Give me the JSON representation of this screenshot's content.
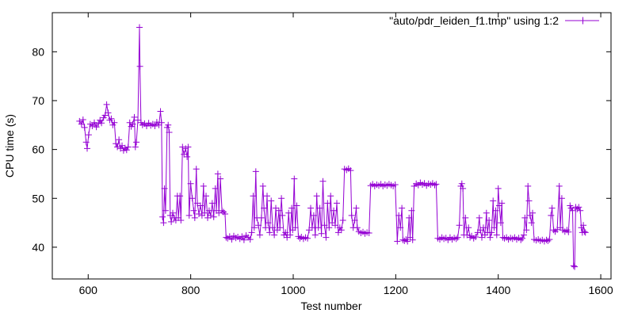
{
  "chart_data": {
    "type": "line",
    "title": "",
    "xlabel": "Test number",
    "ylabel": "CPU time (s)",
    "xlim": [
      530,
      1620
    ],
    "ylim": [
      33.5,
      88
    ],
    "xticks": [
      600,
      800,
      1000,
      1200,
      1400,
      1600
    ],
    "yticks": [
      40,
      50,
      60,
      70,
      80
    ],
    "grid": false,
    "legend_position": "top-right",
    "marker": "plus",
    "color": "#9400d3",
    "series": [
      {
        "name": "\"auto/pdr_leiden_f1.tmp\" using 1:2",
        "points": [
          [
            583,
            65.8
          ],
          [
            587,
            65.2
          ],
          [
            590,
            66.1
          ],
          [
            593,
            64.5
          ],
          [
            596,
            61.5
          ],
          [
            598,
            60.2
          ],
          [
            601,
            63.0
          ],
          [
            604,
            65.2
          ],
          [
            608,
            64.8
          ],
          [
            612,
            65.5
          ],
          [
            616,
            64.6
          ],
          [
            620,
            65.3
          ],
          [
            623,
            66.0
          ],
          [
            626,
            65.4
          ],
          [
            630,
            66.5
          ],
          [
            633,
            67.0
          ],
          [
            636,
            69.2
          ],
          [
            639,
            67.5
          ],
          [
            642,
            66.0
          ],
          [
            645,
            66.3
          ],
          [
            648,
            65.0
          ],
          [
            651,
            65.5
          ],
          [
            654,
            61.2
          ],
          [
            657,
            60.5
          ],
          [
            660,
            62.0
          ],
          [
            663,
            60.2
          ],
          [
            666,
            60.8
          ],
          [
            669,
            59.8
          ],
          [
            672,
            60.3
          ],
          [
            675,
            59.9
          ],
          [
            678,
            60.5
          ],
          [
            681,
            65.5
          ],
          [
            684,
            64.7
          ],
          [
            687,
            65.2
          ],
          [
            690,
            66.6
          ],
          [
            692,
            60.5
          ],
          [
            694,
            61.5
          ],
          [
            697,
            66.0
          ],
          [
            700,
            85.0
          ],
          [
            701,
            77.0
          ],
          [
            703,
            65.5
          ],
          [
            706,
            65.0
          ],
          [
            710,
            65.3
          ],
          [
            714,
            64.8
          ],
          [
            718,
            65.4
          ],
          [
            722,
            64.9
          ],
          [
            726,
            65.2
          ],
          [
            730,
            64.8
          ],
          [
            734,
            65.6
          ],
          [
            738,
            65.0
          ],
          [
            741,
            67.8
          ],
          [
            743,
            65.5
          ],
          [
            745,
            46.2
          ],
          [
            747,
            45.0
          ],
          [
            749,
            52.0
          ],
          [
            751,
            47.5
          ],
          [
            754,
            64.5
          ],
          [
            756,
            65.0
          ],
          [
            758,
            63.5
          ],
          [
            760,
            46.5
          ],
          [
            762,
            45.2
          ],
          [
            765,
            47.0
          ],
          [
            768,
            46.0
          ],
          [
            771,
            45.5
          ],
          [
            774,
            50.5
          ],
          [
            776,
            46.0
          ],
          [
            779,
            50.5
          ],
          [
            781,
            45.5
          ],
          [
            784,
            60.5
          ],
          [
            787,
            59.0
          ],
          [
            790,
            60.2
          ],
          [
            793,
            58.5
          ],
          [
            795,
            60.5
          ],
          [
            797,
            46.5
          ],
          [
            800,
            53.0
          ],
          [
            803,
            50.0
          ],
          [
            806,
            47.5
          ],
          [
            808,
            46.0
          ],
          [
            811,
            56.0
          ],
          [
            813,
            49.0
          ],
          [
            816,
            46.8
          ],
          [
            819,
            48.5
          ],
          [
            822,
            46.5
          ],
          [
            825,
            52.5
          ],
          [
            827,
            47.0
          ],
          [
            830,
            50.5
          ],
          [
            833,
            46.0
          ],
          [
            836,
            47.5
          ],
          [
            839,
            46.5
          ],
          [
            842,
            49.0
          ],
          [
            845,
            46.2
          ],
          [
            848,
            52.0
          ],
          [
            850,
            47.5
          ],
          [
            853,
            55.0
          ],
          [
            855,
            47.0
          ],
          [
            858,
            54.0
          ],
          [
            861,
            47.5
          ],
          [
            864,
            47.2
          ],
          [
            867,
            46.8
          ],
          [
            869,
            42.0
          ],
          [
            872,
            41.8
          ],
          [
            876,
            42.2
          ],
          [
            880,
            41.6
          ],
          [
            884,
            42.3
          ],
          [
            888,
            41.9
          ],
          [
            892,
            42.1
          ],
          [
            896,
            41.7
          ],
          [
            900,
            42.2
          ],
          [
            904,
            41.5
          ],
          [
            908,
            42.4
          ],
          [
            912,
            42.0
          ],
          [
            916,
            41.6
          ],
          [
            919,
            43.0
          ],
          [
            922,
            50.5
          ],
          [
            924,
            44.0
          ],
          [
            927,
            55.5
          ],
          [
            929,
            46.0
          ],
          [
            932,
            44.5
          ],
          [
            935,
            42.5
          ],
          [
            938,
            46.0
          ],
          [
            941,
            52.5
          ],
          [
            943,
            48.0
          ],
          [
            946,
            44.0
          ],
          [
            949,
            50.5
          ],
          [
            951,
            45.0
          ],
          [
            954,
            43.0
          ],
          [
            957,
            49.5
          ],
          [
            960,
            44.0
          ],
          [
            963,
            42.5
          ],
          [
            966,
            48.0
          ],
          [
            969,
            43.5
          ],
          [
            972,
            47.5
          ],
          [
            974,
            44.0
          ],
          [
            977,
            50.0
          ],
          [
            979,
            46.5
          ],
          [
            982,
            42.5
          ],
          [
            985,
            43.0
          ],
          [
            988,
            42.0
          ],
          [
            991,
            47.0
          ],
          [
            994,
            42.5
          ],
          [
            997,
            48.0
          ],
          [
            999,
            43.5
          ],
          [
            1002,
            54.0
          ],
          [
            1004,
            44.0
          ],
          [
            1007,
            48.5
          ],
          [
            1010,
            42.2
          ],
          [
            1013,
            41.8
          ],
          [
            1016,
            42.1
          ],
          [
            1020,
            41.7
          ],
          [
            1024,
            42.0
          ],
          [
            1028,
            41.8
          ],
          [
            1031,
            43.5
          ],
          [
            1034,
            48.0
          ],
          [
            1037,
            44.0
          ],
          [
            1040,
            46.5
          ],
          [
            1043,
            42.5
          ],
          [
            1046,
            50.5
          ],
          [
            1049,
            44.0
          ],
          [
            1052,
            48.0
          ],
          [
            1055,
            42.8
          ],
          [
            1058,
            53.5
          ],
          [
            1061,
            44.5
          ],
          [
            1064,
            42.0
          ],
          [
            1067,
            49.0
          ],
          [
            1070,
            44.0
          ],
          [
            1073,
            50.5
          ],
          [
            1076,
            45.0
          ],
          [
            1079,
            47.5
          ],
          [
            1082,
            44.5
          ],
          [
            1085,
            49.0
          ],
          [
            1088,
            43.0
          ],
          [
            1091,
            44.0
          ],
          [
            1094,
            43.5
          ],
          [
            1097,
            45.5
          ],
          [
            1100,
            56.0
          ],
          [
            1104,
            55.8
          ],
          [
            1108,
            56.1
          ],
          [
            1112,
            55.7
          ],
          [
            1114,
            46.5
          ],
          [
            1117,
            44.0
          ],
          [
            1120,
            45.5
          ],
          [
            1123,
            48.0
          ],
          [
            1125,
            44.0
          ],
          [
            1128,
            43.2
          ],
          [
            1132,
            42.9
          ],
          [
            1136,
            43.1
          ],
          [
            1140,
            42.8
          ],
          [
            1144,
            43.0
          ],
          [
            1148,
            42.9
          ],
          [
            1151,
            52.6
          ],
          [
            1155,
            52.9
          ],
          [
            1159,
            52.5
          ],
          [
            1163,
            52.8
          ],
          [
            1167,
            52.6
          ],
          [
            1171,
            52.9
          ],
          [
            1175,
            52.5
          ],
          [
            1179,
            52.8
          ],
          [
            1183,
            52.6
          ],
          [
            1187,
            52.9
          ],
          [
            1191,
            52.7
          ],
          [
            1195,
            52.5
          ],
          [
            1199,
            52.8
          ],
          [
            1203,
            41.2
          ],
          [
            1206,
            46.5
          ],
          [
            1209,
            44.0
          ],
          [
            1212,
            48.0
          ],
          [
            1214,
            41.5
          ],
          [
            1217,
            41.3
          ],
          [
            1220,
            41.6
          ],
          [
            1223,
            41.2
          ],
          [
            1226,
            46.0
          ],
          [
            1228,
            42.0
          ],
          [
            1231,
            47.5
          ],
          [
            1233,
            41.5
          ],
          [
            1236,
            52.5
          ],
          [
            1240,
            53.0
          ],
          [
            1244,
            52.7
          ],
          [
            1248,
            53.2
          ],
          [
            1252,
            52.8
          ],
          [
            1256,
            53.1
          ],
          [
            1260,
            52.6
          ],
          [
            1264,
            53.0
          ],
          [
            1268,
            52.8
          ],
          [
            1272,
            53.1
          ],
          [
            1276,
            52.7
          ],
          [
            1279,
            52.9
          ],
          [
            1282,
            41.8
          ],
          [
            1286,
            41.6
          ],
          [
            1290,
            42.0
          ],
          [
            1294,
            41.7
          ],
          [
            1298,
            41.9
          ],
          [
            1302,
            41.5
          ],
          [
            1306,
            42.0
          ],
          [
            1310,
            41.6
          ],
          [
            1314,
            41.9
          ],
          [
            1318,
            41.7
          ],
          [
            1321,
            42.0
          ],
          [
            1324,
            44.5
          ],
          [
            1327,
            52.5
          ],
          [
            1329,
            53.0
          ],
          [
            1331,
            52.0
          ],
          [
            1333,
            42.5
          ],
          [
            1336,
            46.0
          ],
          [
            1339,
            42.5
          ],
          [
            1342,
            44.0
          ],
          [
            1345,
            42.0
          ],
          [
            1348,
            42.3
          ],
          [
            1352,
            41.8
          ],
          [
            1356,
            42.1
          ],
          [
            1360,
            43.0
          ],
          [
            1363,
            46.0
          ],
          [
            1365,
            43.5
          ],
          [
            1368,
            42.0
          ],
          [
            1371,
            44.0
          ],
          [
            1374,
            42.5
          ],
          [
            1377,
            47.0
          ],
          [
            1379,
            43.0
          ],
          [
            1382,
            45.5
          ],
          [
            1384,
            42.0
          ],
          [
            1387,
            43.0
          ],
          [
            1390,
            49.5
          ],
          [
            1392,
            44.0
          ],
          [
            1395,
            47.5
          ],
          [
            1397,
            42.5
          ],
          [
            1400,
            52.0
          ],
          [
            1402,
            48.5
          ],
          [
            1405,
            45.0
          ],
          [
            1407,
            49.0
          ],
          [
            1409,
            42.0
          ],
          [
            1412,
            41.8
          ],
          [
            1416,
            42.0
          ],
          [
            1420,
            41.6
          ],
          [
            1424,
            41.9
          ],
          [
            1428,
            41.7
          ],
          [
            1432,
            42.0
          ],
          [
            1436,
            41.6
          ],
          [
            1440,
            41.9
          ],
          [
            1444,
            41.5
          ],
          [
            1447,
            41.8
          ],
          [
            1450,
            42.5
          ],
          [
            1452,
            46.0
          ],
          [
            1455,
            43.5
          ],
          [
            1458,
            52.5
          ],
          [
            1460,
            49.5
          ],
          [
            1462,
            46.5
          ],
          [
            1465,
            45.0
          ],
          [
            1467,
            47.0
          ],
          [
            1470,
            41.6
          ],
          [
            1474,
            41.4
          ],
          [
            1478,
            41.6
          ],
          [
            1482,
            41.3
          ],
          [
            1486,
            41.5
          ],
          [
            1490,
            41.2
          ],
          [
            1494,
            41.5
          ],
          [
            1497,
            41.3
          ],
          [
            1500,
            41.6
          ],
          [
            1503,
            46.5
          ],
          [
            1505,
            48.0
          ],
          [
            1508,
            43.5
          ],
          [
            1511,
            43.2
          ],
          [
            1515,
            43.6
          ],
          [
            1519,
            52.5
          ],
          [
            1521,
            44.0
          ],
          [
            1524,
            50.0
          ],
          [
            1526,
            43.5
          ],
          [
            1530,
            43.2
          ],
          [
            1534,
            43.5
          ],
          [
            1537,
            43.1
          ],
          [
            1540,
            48.5
          ],
          [
            1542,
            48.0
          ],
          [
            1545,
            47.5
          ],
          [
            1547,
            36.2
          ],
          [
            1549,
            36.0
          ],
          [
            1551,
            48.2
          ],
          [
            1554,
            47.8
          ],
          [
            1557,
            48.2
          ],
          [
            1560,
            47.5
          ],
          [
            1562,
            44.0
          ],
          [
            1564,
            43.0
          ],
          [
            1566,
            44.5
          ],
          [
            1568,
            43.2
          ],
          [
            1570,
            43.0
          ]
        ]
      }
    ]
  }
}
